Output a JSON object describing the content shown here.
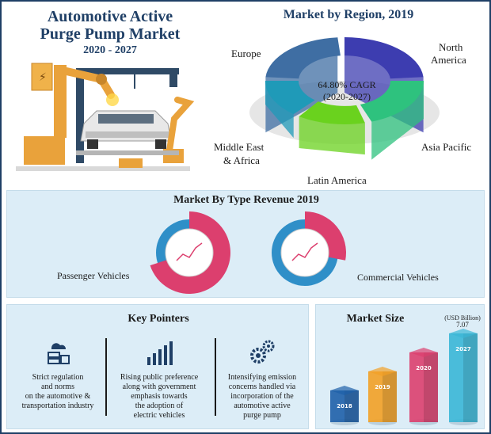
{
  "header": {
    "title_line1": "Automotive Active",
    "title_line2": "Purge Pump Market",
    "years": "2020 - 2027"
  },
  "region": {
    "title": "Market by Region, 2019",
    "labels": {
      "europe": "Europe",
      "north_america_1": "North",
      "north_america_2": "America",
      "asia_pacific": "Asia Pacific",
      "mea_1": "Middle East",
      "mea_2": "& Africa",
      "latin_america": "Latin America"
    },
    "cagr_line1": "64.80% CAGR",
    "cagr_line2": "(2020-2027)",
    "colors": {
      "europe": "#3f6ea3",
      "north_america": "#3d3db0",
      "asia_pacific": "#2ec27e",
      "latin_america": "#6ad21e",
      "middle_east_africa": "#1f9ab8"
    }
  },
  "type_revenue": {
    "title": "Market By Type Revenue 2019",
    "passenger": "Passenger Vehicles",
    "commercial": "Commercial Vehicles",
    "passenger_share": 0.7,
    "commercial_share": 0.28,
    "colors": {
      "major": "#dc3f6e",
      "minor": "#2f8fc8"
    }
  },
  "key_pointers": {
    "title": "Key Pointers",
    "items": [
      {
        "icon": "server-cloud-icon",
        "text": [
          "Strict regulation",
          "and norms",
          "on the automotive &",
          "transportation industry"
        ]
      },
      {
        "icon": "bar-chart-icon",
        "text": [
          "Rising public preference",
          "along with government",
          "emphasis towards",
          "the adoption of",
          "electric vehicles"
        ]
      },
      {
        "icon": "gears-icon",
        "text": [
          "Intensifying emission",
          "concerns handled via",
          "incorporation of the",
          "automotive active",
          "purge pump"
        ]
      }
    ]
  },
  "market_size": {
    "title": "Market Size",
    "unit_line1": "(USD Billion)",
    "unit_line2": "7.07",
    "bars": [
      {
        "label": "2018",
        "color": "#1e5fa8"
      },
      {
        "label": "2019",
        "color": "#f2a025"
      },
      {
        "label": "2020",
        "color": "#dc3f6e"
      },
      {
        "label": "2027",
        "color": "#3ab6d6"
      }
    ]
  }
}
